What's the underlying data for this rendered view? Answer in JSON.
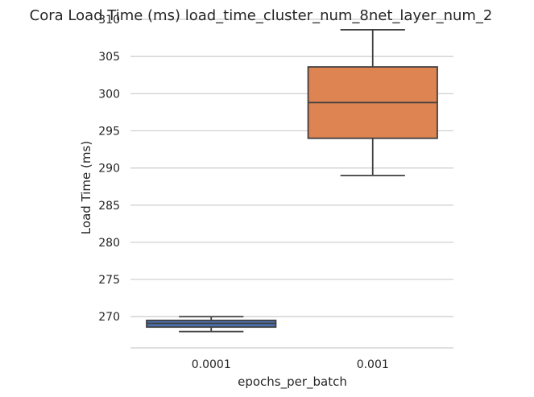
{
  "chart_data": {
    "type": "box",
    "title": "Cora Load Time (ms) load_time_cluster_num_8net_layer_num_2",
    "xlabel": "epochs_per_batch",
    "ylabel": "Load Time (ms)",
    "ylim": [
      266,
      310
    ],
    "yticks": [
      270,
      275,
      280,
      285,
      290,
      295,
      300,
      305,
      310
    ],
    "grid": "horizontal",
    "categories": [
      "0.0001",
      "0.001"
    ],
    "boxes": [
      {
        "category": "0.0001",
        "whisker_low": 268.0,
        "q1": 268.6,
        "median": 269.1,
        "q3": 269.5,
        "whisker_high": 270.0,
        "color": "#4c72b0"
      },
      {
        "category": "0.001",
        "whisker_low": 289.0,
        "q1": 294.0,
        "median": 298.8,
        "q3": 303.6,
        "whisker_high": 308.6,
        "color": "#dd8452"
      }
    ]
  }
}
